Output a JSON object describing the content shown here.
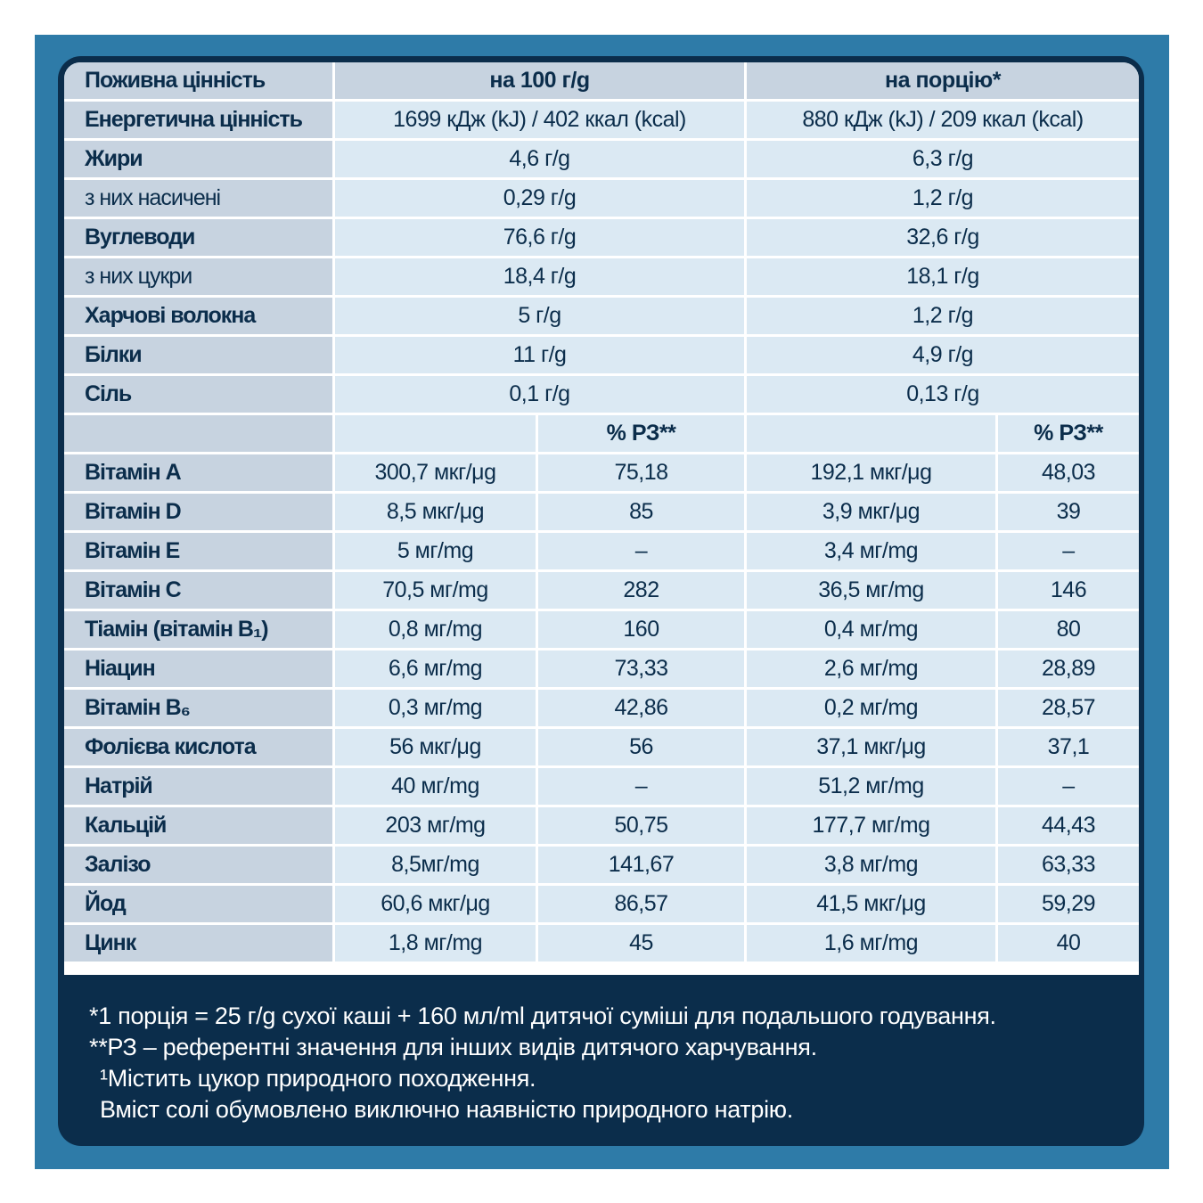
{
  "header": {
    "label": "Поживна цінність",
    "per100": "на 100 г/g",
    "perServing": "на порцію*"
  },
  "macros": [
    {
      "label": "Енергетична цінність",
      "bold": true,
      "per100": "1699 кДж (kJ) / 402 ккал (kcal)",
      "serving": "880 кДж (kJ) / 209 ккал (kcal)"
    },
    {
      "label": "Жири",
      "bold": true,
      "per100": "4,6 г/g",
      "serving": "6,3 г/g"
    },
    {
      "label": "з них насичені",
      "bold": false,
      "per100": "0,29 г/g",
      "serving": "1,2 г/g"
    },
    {
      "label": "Вуглеводи",
      "bold": true,
      "per100": "76,6 г/g",
      "serving": "32,6 г/g"
    },
    {
      "label": "з них цукри",
      "bold": false,
      "per100": "18,4 г/g",
      "serving": "18,1 г/g"
    },
    {
      "label": "Харчові волокна",
      "bold": true,
      "per100": "5 г/g",
      "serving": "1,2 г/g"
    },
    {
      "label": "Білки",
      "bold": true,
      "per100": "11 г/g",
      "serving": "4,9 г/g"
    },
    {
      "label": "Сіль",
      "bold": true,
      "per100": "0,1 г/g",
      "serving": "0,13 г/g"
    }
  ],
  "pctHeader": "% РЗ**",
  "vitamins": [
    {
      "label": "Вітамін A",
      "v100": "300,7 мкг/μg",
      "p100": "75,18",
      "vs": "192,1 мкг/μg",
      "ps": "48,03"
    },
    {
      "label": "Вітамін D",
      "v100": "8,5 мкг/μg",
      "p100": "85",
      "vs": "3,9 мкг/μg",
      "ps": "39"
    },
    {
      "label": "Вітамін E",
      "v100": "5 мг/mg",
      "p100": "–",
      "vs": "3,4 мг/mg",
      "ps": "–"
    },
    {
      "label": "Вітамін C",
      "v100": "70,5 мг/mg",
      "p100": "282",
      "vs": "36,5 мг/mg",
      "ps": "146"
    },
    {
      "label": "Тіамін (вітамін B₁)",
      "v100": "0,8 мг/mg",
      "p100": "160",
      "vs": "0,4 мг/mg",
      "ps": "80"
    },
    {
      "label": "Ніацин",
      "v100": "6,6 мг/mg",
      "p100": "73,33",
      "vs": "2,6 мг/mg",
      "ps": "28,89"
    },
    {
      "label": "Вітамін B₆",
      "v100": "0,3 мг/mg",
      "p100": "42,86",
      "vs": "0,2 мг/mg",
      "ps": "28,57"
    },
    {
      "label": "Фолієва кислота",
      "v100": "56 мкг/μg",
      "p100": "56",
      "vs": "37,1 мкг/μg",
      "ps": "37,1"
    },
    {
      "label": "Натрій",
      "v100": "40 мг/mg",
      "p100": "–",
      "vs": "51,2 мг/mg",
      "ps": "–"
    },
    {
      "label": "Кальцій",
      "v100": "203 мг/mg",
      "p100": "50,75",
      "vs": "177,7 мг/mg",
      "ps": "44,43"
    },
    {
      "label": "Залізо",
      "v100": "8,5мг/mg",
      "p100": "141,67",
      "vs": "3,8 мг/mg",
      "ps": "63,33"
    },
    {
      "label": "Йод",
      "v100": "60,6 мкг/μg",
      "p100": "86,57",
      "vs": "41,5 мкг/μg",
      "ps": "59,29"
    },
    {
      "label": "Цинк",
      "v100": "1,8 мг/mg",
      "p100": "45",
      "vs": "1,6 мг/mg",
      "ps": "40"
    }
  ],
  "footnotes": [
    "*1 порція = 25 г/g сухої каші + 160 мл/ml дитячої суміші для подальшого годування.",
    "**РЗ – референтні значення для інших видів дитячого харчування.",
    "¹Містить цукор природного походження.",
    " Вміст солі обумовлено виключно наявністю природного натрію."
  ]
}
